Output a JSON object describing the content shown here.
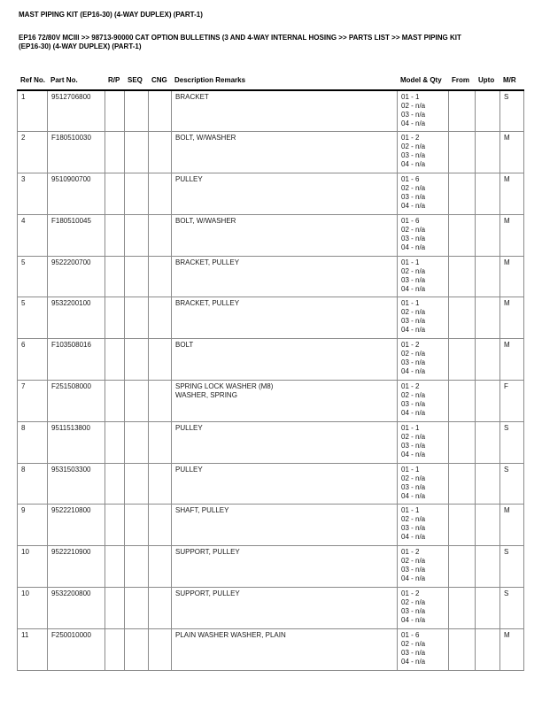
{
  "page": {
    "title": "MAST PIPING KIT (EP16-30) (4-WAY DUPLEX) (PART-1)",
    "breadcrumb_lines": [
      "EP16 72/80V MCIII >> 98713-90000 CAT OPTION BULLETINS (3 AND 4-WAY INTERNAL HOSING >> PARTS LIST >> MAST PIPING KIT",
      "(EP16-30) (4-WAY DUPLEX) (PART-1)"
    ]
  },
  "table": {
    "columns": [
      {
        "key": "ref",
        "label": "Ref No."
      },
      {
        "key": "part",
        "label": "Part No."
      },
      {
        "key": "rp",
        "label": "R/P"
      },
      {
        "key": "seq",
        "label": "SEQ"
      },
      {
        "key": "cng",
        "label": "CNG"
      },
      {
        "key": "desc",
        "label": "Description Remarks"
      },
      {
        "key": "model",
        "label": "Model & Qty"
      },
      {
        "key": "from",
        "label": "From"
      },
      {
        "key": "upto",
        "label": "Upto"
      },
      {
        "key": "mr",
        "label": "M/R"
      }
    ],
    "rows": [
      {
        "ref": "1",
        "part": "9512706800",
        "rp": "",
        "seq": "",
        "cng": "",
        "desc": [
          "BRACKET"
        ],
        "model": [
          "01 - 1",
          "02 - n/a",
          "03 - n/a",
          "04 - n/a"
        ],
        "from": "",
        "upto": "",
        "mr": "S"
      },
      {
        "ref": "2",
        "part": "F180510030",
        "rp": "",
        "seq": "",
        "cng": "",
        "desc": [
          "BOLT, W/WASHER"
        ],
        "model": [
          "01 - 2",
          "02 - n/a",
          "03 - n/a",
          "04 - n/a"
        ],
        "from": "",
        "upto": "",
        "mr": "M"
      },
      {
        "ref": "3",
        "part": "9510900700",
        "rp": "",
        "seq": "",
        "cng": "",
        "desc": [
          "PULLEY"
        ],
        "model": [
          "01 - 6",
          "02 - n/a",
          "03 - n/a",
          "04 - n/a"
        ],
        "from": "",
        "upto": "",
        "mr": "M"
      },
      {
        "ref": "4",
        "part": "F180510045",
        "rp": "",
        "seq": "",
        "cng": "",
        "desc": [
          "BOLT, W/WASHER"
        ],
        "model": [
          "01 - 6",
          "02 - n/a",
          "03 - n/a",
          "04 - n/a"
        ],
        "from": "",
        "upto": "",
        "mr": "M"
      },
      {
        "ref": "5",
        "part": "9522200700",
        "rp": "",
        "seq": "",
        "cng": "",
        "desc": [
          "BRACKET, PULLEY"
        ],
        "model": [
          "01 - 1",
          "02 - n/a",
          "03 - n/a",
          "04 - n/a"
        ],
        "from": "",
        "upto": "",
        "mr": "M"
      },
      {
        "ref": "5",
        "part": "9532200100",
        "rp": "",
        "seq": "",
        "cng": "",
        "desc": [
          "BRACKET, PULLEY"
        ],
        "model": [
          "01 - 1",
          "02 - n/a",
          "03 - n/a",
          "04 - n/a"
        ],
        "from": "",
        "upto": "",
        "mr": "M"
      },
      {
        "ref": "6",
        "part": "F103508016",
        "rp": "",
        "seq": "",
        "cng": "",
        "desc": [
          "BOLT"
        ],
        "model": [
          "01 - 2",
          "02 - n/a",
          "03 - n/a",
          "04 - n/a"
        ],
        "from": "",
        "upto": "",
        "mr": "M"
      },
      {
        "ref": "7",
        "part": "F251508000",
        "rp": "",
        "seq": "",
        "cng": "",
        "desc": [
          "SPRING LOCK WASHER (M8)",
          "WASHER, SPRING"
        ],
        "model": [
          "01 - 2",
          "02 - n/a",
          "03 - n/a",
          "04 - n/a"
        ],
        "from": "",
        "upto": "",
        "mr": "F"
      },
      {
        "ref": "8",
        "part": "9511513800",
        "rp": "",
        "seq": "",
        "cng": "",
        "desc": [
          "PULLEY"
        ],
        "model": [
          "01 - 1",
          "02 - n/a",
          "03 - n/a",
          "04 - n/a"
        ],
        "from": "",
        "upto": "",
        "mr": "S"
      },
      {
        "ref": "8",
        "part": "9531503300",
        "rp": "",
        "seq": "",
        "cng": "",
        "desc": [
          "PULLEY"
        ],
        "model": [
          "01 - 1",
          "02 - n/a",
          "03 - n/a",
          "04 - n/a"
        ],
        "from": "",
        "upto": "",
        "mr": "S"
      },
      {
        "ref": "9",
        "part": "9522210800",
        "rp": "",
        "seq": "",
        "cng": "",
        "desc": [
          "SHAFT, PULLEY"
        ],
        "model": [
          "01 - 1",
          "02 - n/a",
          "03 - n/a",
          "04 - n/a"
        ],
        "from": "",
        "upto": "",
        "mr": "M"
      },
      {
        "ref": "10",
        "part": "9522210900",
        "rp": "",
        "seq": "",
        "cng": "",
        "desc": [
          "SUPPORT, PULLEY"
        ],
        "model": [
          "01 - 2",
          "02 - n/a",
          "03 - n/a",
          "04 - n/a"
        ],
        "from": "",
        "upto": "",
        "mr": "S"
      },
      {
        "ref": "10",
        "part": "9532200800",
        "rp": "",
        "seq": "",
        "cng": "",
        "desc": [
          "SUPPORT, PULLEY"
        ],
        "model": [
          "01 - 2",
          "02 - n/a",
          "03 - n/a",
          "04 - n/a"
        ],
        "from": "",
        "upto": "",
        "mr": "S"
      },
      {
        "ref": "11",
        "part": "F250010000",
        "rp": "",
        "seq": "",
        "cng": "",
        "desc": [
          "PLAIN WASHER WASHER, PLAIN"
        ],
        "model": [
          "01 - 6",
          "02 - n/a",
          "03 - n/a",
          "04 - n/a"
        ],
        "from": "",
        "upto": "",
        "mr": "M"
      }
    ]
  },
  "colors": {
    "background": "#ffffff",
    "text": "#1a1a1a",
    "heavy_rule": "#000000",
    "table_border": "#8a8a8a"
  }
}
